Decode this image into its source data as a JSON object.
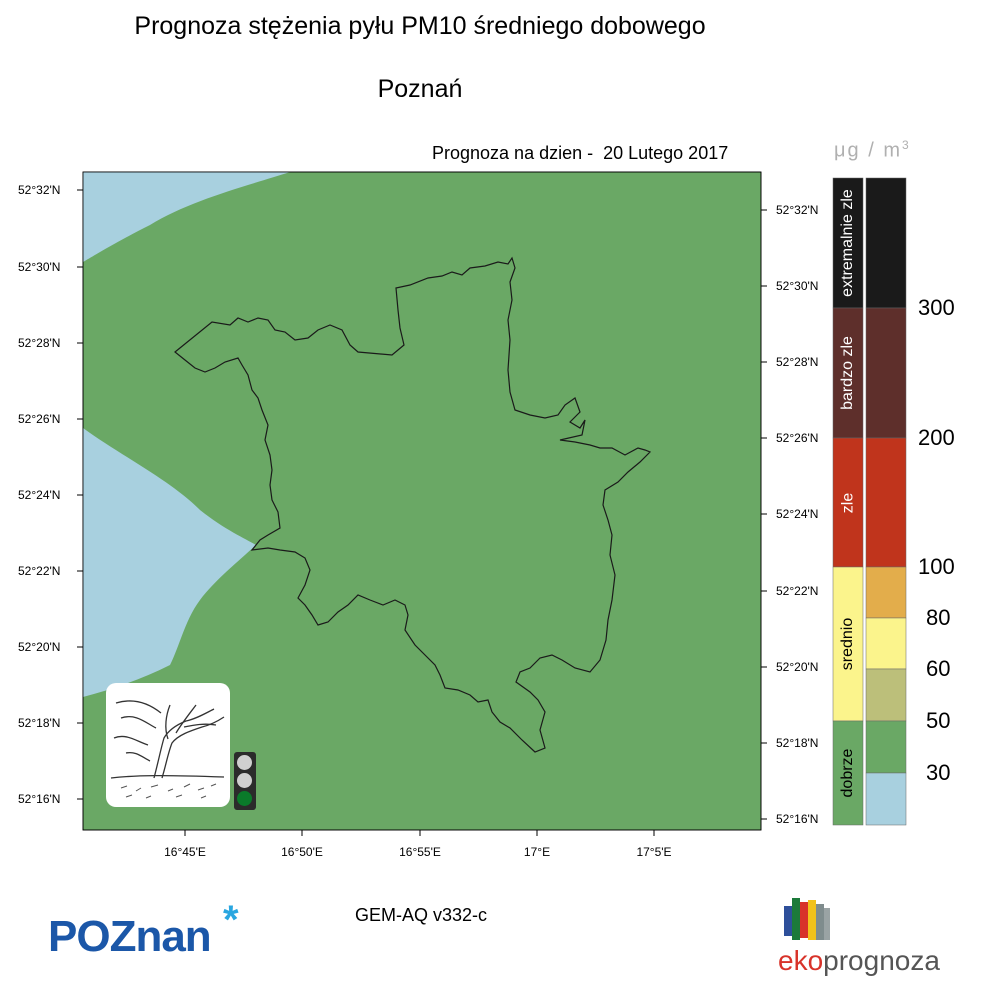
{
  "header": {
    "title": "Prognoza stężenia pyłu PM10 średniego dobowego",
    "city": "Poznań",
    "forecast_date": "Prognoza na dzien -  20 Lutego 2017"
  },
  "legend": {
    "unit_mu": "μg / m",
    "unit_exp": "3",
    "categories": [
      {
        "label": "extremalnie zle",
        "color": "#1a1a1a"
      },
      {
        "label": "bardzo zle",
        "color": "#5e2f2b"
      },
      {
        "label": "zle",
        "color": "#c0341c"
      },
      {
        "label": "srednio",
        "color": "#fbf48c"
      },
      {
        "label": "dobrze",
        "color": "#6aa865"
      }
    ],
    "scale": [
      {
        "color": "#1a1a1a"
      },
      {
        "color": "#5e2f2b"
      },
      {
        "color": "#c0341c"
      },
      {
        "color": "#e3ad4b"
      },
      {
        "color": "#fbf48c"
      },
      {
        "color": "#bcbf7a"
      },
      {
        "color": "#6aa865"
      },
      {
        "color": "#a8d0df"
      }
    ],
    "ticks": [
      "300",
      "200",
      "100",
      "80",
      "60",
      "50",
      "30"
    ]
  },
  "map": {
    "land_color": "#6aa865",
    "water_color": "#a8d0df",
    "lat_labels_left": [
      "52°32'N",
      "52°30'N",
      "52°28'N",
      "52°26'N",
      "52°24'N",
      "52°22'N",
      "52°20'N",
      "52°18'N",
      "52°16'N"
    ],
    "lat_labels_right": [
      "52°32'N",
      "52°30'N",
      "52°28'N",
      "52°26'N",
      "52°24'N",
      "52°22'N",
      "52°20'N",
      "52°18'N",
      "52°16'N"
    ],
    "lon_labels": [
      "16°45'E",
      "16°50'E",
      "16°55'E",
      "17°E",
      "17°5'E"
    ],
    "traffic_light": {
      "top": "off",
      "middle": "off",
      "bottom": "green"
    }
  },
  "footer": {
    "model": "GEM-AQ v332-c",
    "logo_left": "POZnan",
    "logo_right_a": "eko",
    "logo_right_b": "prognoza"
  }
}
